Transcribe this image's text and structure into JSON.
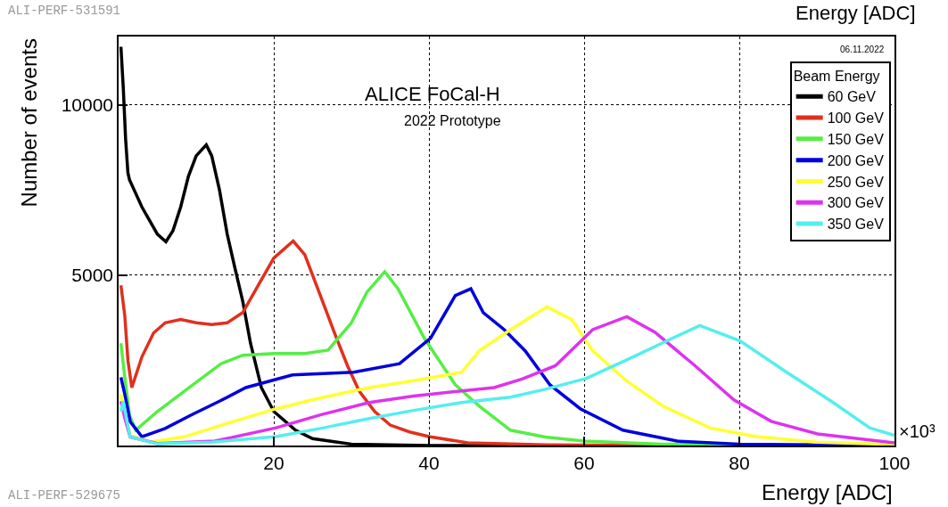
{
  "chart_data": {
    "type": "line",
    "title": "ALICE FoCal-H",
    "subtitle": "2022 Prototype",
    "xlabel": "Energy [ADC]",
    "ylabel": "Number of events",
    "legend_title": "Beam Energy",
    "annotations": [
      "06.11.2022",
      "ALI-PERF-529675",
      "ALI-PERF-531591",
      "Energy [ADC]",
      "×10³"
    ],
    "xlim": [
      0,
      100
    ],
    "xticks": [
      20,
      40,
      60,
      80,
      100
    ],
    "ylim": [
      0,
      12000
    ],
    "yticks": [
      5000,
      10000
    ],
    "grid": true,
    "legend": "top right",
    "line_style": "solid",
    "series": [
      {
        "name": "60 GeV",
        "color": "#000000",
        "x": [
          0.3,
          0.6,
          0.9,
          1.2,
          1.4,
          2,
          3,
          4,
          5,
          6.1,
          7,
          8,
          9,
          10,
          11.3,
          12,
          13,
          14,
          15,
          16,
          17,
          18.4,
          20,
          22.8,
          25,
          30,
          40,
          60,
          80,
          100
        ],
        "values": [
          11700,
          10500,
          9000,
          8000,
          7800,
          7500,
          7000,
          6600,
          6200,
          5980,
          6300,
          7000,
          7900,
          8500,
          8820,
          8500,
          7500,
          6200,
          5200,
          4230,
          3000,
          1700,
          1000,
          450,
          200,
          40,
          0,
          0,
          0,
          0
        ]
      },
      {
        "name": "100 GeV",
        "color": "#e0301e",
        "x": [
          0.3,
          0.8,
          1.2,
          1.7,
          3,
          4.5,
          6,
          8,
          10,
          12,
          14,
          16,
          18,
          20,
          22.5,
          24,
          26,
          28,
          29.5,
          31,
          33,
          35,
          37.5,
          40,
          45,
          55,
          70,
          100
        ],
        "values": [
          4700,
          3800,
          2500,
          1700,
          2600,
          3300,
          3600,
          3700,
          3600,
          3550,
          3600,
          3900,
          4700,
          5500,
          6000,
          5600,
          4400,
          3200,
          2340,
          1600,
          1000,
          600,
          400,
          260,
          80,
          20,
          0,
          0
        ]
      },
      {
        "name": "150 GeV",
        "color": "#55ee44",
        "x": [
          0.3,
          0.8,
          1.4,
          2.2,
          5,
          8.5,
          13.2,
          16,
          20,
          24,
          27,
          30,
          32,
          34.3,
          36,
          39.4,
          43.4,
          46.5,
          50.5,
          55,
          60,
          70,
          100
        ],
        "values": [
          3000,
          2000,
          900,
          450,
          1000,
          1600,
          2400,
          2650,
          2700,
          2700,
          2800,
          3600,
          4500,
          5100,
          4600,
          3150,
          1780,
          1150,
          450,
          250,
          130,
          40,
          0
        ]
      },
      {
        "name": "200 GeV",
        "color": "#0000dd",
        "x": [
          0.3,
          0.8,
          1.5,
          3,
          6,
          9.3,
          13,
          16.4,
          22.4,
          30.3,
          36.2,
          40.2,
          43.4,
          45.4,
          47,
          49.7,
          52.4,
          55.6,
          59.5,
          65,
          72,
          80,
          100
        ],
        "values": [
          2000,
          1500,
          700,
          260,
          500,
          890,
          1300,
          1700,
          2070,
          2150,
          2400,
          3150,
          4400,
          4600,
          3900,
          3400,
          2780,
          1780,
          1080,
          450,
          130,
          40,
          0
        ]
      },
      {
        "name": "250 GeV",
        "color": "#ffff33",
        "x": [
          0.3,
          0.8,
          1.5,
          4,
          8.5,
          14,
          20.3,
          26,
          32.3,
          38,
          44.2,
          46.5,
          50.5,
          55.2,
          58.4,
          61.1,
          65.5,
          70.2,
          76.2,
          82.2,
          90,
          100
        ],
        "values": [
          1500,
          900,
          300,
          100,
          260,
          650,
          1080,
          1400,
          1700,
          1900,
          2150,
          2780,
          3400,
          4070,
          3700,
          2780,
          1890,
          1150,
          520,
          260,
          100,
          30
        ]
      },
      {
        "name": "300 GeV",
        "color": "#dd33ee",
        "x": [
          0.3,
          0.8,
          1.5,
          5,
          12.4,
          20.3,
          26,
          32.3,
          38,
          44.2,
          48.4,
          52,
          56.3,
          61.1,
          65.5,
          69.1,
          74.3,
          79.3,
          84.1,
          90.1,
          100
        ],
        "values": [
          1300,
          800,
          250,
          60,
          130,
          520,
          900,
          1260,
          1450,
          1600,
          1700,
          1950,
          2340,
          3400,
          3780,
          3330,
          2340,
          1340,
          710,
          340,
          80
        ]
      },
      {
        "name": "350 GeV",
        "color": "#55eeee",
        "x": [
          0.3,
          0.6,
          1,
          1.5,
          5,
          12,
          20.3,
          26,
          32.3,
          38,
          44.2,
          50.5,
          55,
          60.3,
          66.3,
          71.4,
          74.9,
          80.1,
          86.1,
          92.1,
          96.8,
          100
        ],
        "values": [
          1000,
          1300,
          790,
          250,
          50,
          100,
          260,
          500,
          790,
          1030,
          1260,
          1420,
          1650,
          1970,
          2600,
          3150,
          3520,
          3070,
          2150,
          1260,
          520,
          300
        ]
      }
    ]
  }
}
